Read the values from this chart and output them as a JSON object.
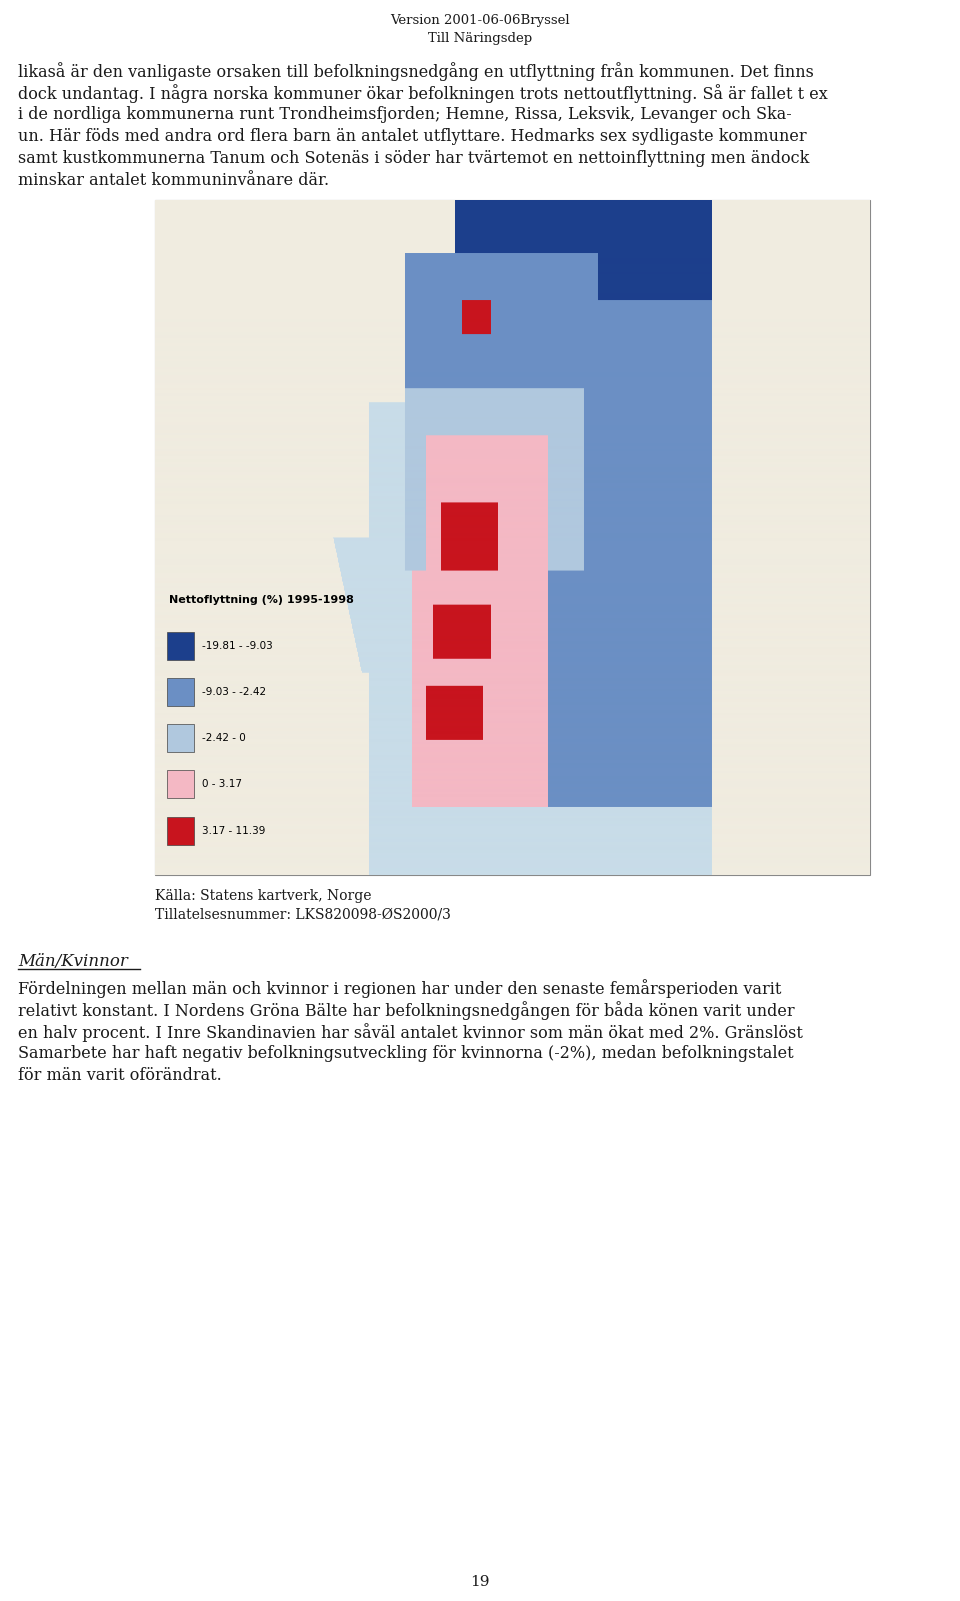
{
  "header_line1": "Version 2001-06-06Bryssel",
  "header_line2": "Till Näringsdep",
  "page_number": "19",
  "background_color": "#ffffff",
  "text_color": "#1a1a1a",
  "font_size_header": 9.5,
  "font_size_body": 11.5,
  "font_size_caption": 10,
  "font_size_section": 12,
  "paragraph1": "likaså är den vanligaste orsaken till befolkningsnedgång en utflyttning från kommunen. Det finns dock undantag. I några norska kommuner ökar befolkningen trots nettoutflyttning. Så är fallet t ex i de nordliga kommunerna runt Trondheimsfjorden; Hemne, Rissa, Leksvik, Levanger och Skaun. Här föds med andra ord flera barn än antalet utflyttare. Hedmarks sex sydligaste kommuner samt kustkommunerna Tanum och Sotenäs i söder har tvärtemot en nettoinflyttning men ändock minskar antalet kommuninvånare där.",
  "caption_line1": "Källa: Statens kartverk, Norge",
  "caption_line2": "Tillatelsesnummer: LKS820098-ØS2000/3",
  "section_heading": "Män/Kvinnor",
  "paragraph2": "Fördelningen mellan män och kvinnor i regionen har under den senaste femårsperioden varit relativt konstant. I Nordens Gröna Bälte har befolkningsnedgången för båda könen varit under en halv procent. I Inre Skandinavien har såväl antalet kvinnor som män ökat med 2%. Gränslöst Samarbete har haft negativ befolkningsutveckling för kvinnorna (-2%), medan befolkningstalet för män varit oförändrat.",
  "map_legend_title": "Nettoflyttning (%) 1995-1998",
  "legend_entries": [
    {
      "color": "#1c3f8c",
      "label": "-19.81 - -9.03"
    },
    {
      "color": "#6b8fc4",
      "label": "-9.03 - -2.42"
    },
    {
      "color": "#b0c8de",
      "label": "-2.42 - 0"
    },
    {
      "color": "#f4b8c4",
      "label": "0 - 3.17"
    },
    {
      "color": "#c8141e",
      "label": "3.17 - 11.39"
    }
  ],
  "map_bg_color": "#c8dce8",
  "map_land_color": "#f0ece0",
  "map_border_color": "#aaaaaa"
}
